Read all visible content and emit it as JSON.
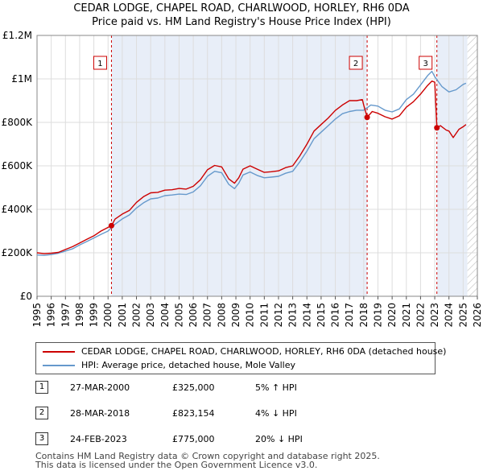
{
  "title_line1": "CEDAR LODGE, CHAPEL ROAD, CHARLWOOD, HORLEY, RH6 0DA",
  "title_line2": "Price paid vs. HM Land Registry's House Price Index (HPI)",
  "colors": {
    "property": "#cc0000",
    "hpi": "#6699cc",
    "shade": "#e8eef8",
    "grid": "#dddddd"
  },
  "chart_data": {
    "type": "line",
    "xlim": [
      1995,
      2026
    ],
    "ylim": [
      0,
      1200000
    ],
    "yticks": [
      {
        "value": 0,
        "label": "£0"
      },
      {
        "value": 200000,
        "label": "£200K"
      },
      {
        "value": 400000,
        "label": "£400K"
      },
      {
        "value": 600000,
        "label": "£600K"
      },
      {
        "value": 800000,
        "label": "£800K"
      },
      {
        "value": 1000000,
        "label": "£1M"
      },
      {
        "value": 1200000,
        "label": "£1.2M"
      }
    ],
    "xticks": [
      "1995",
      "1996",
      "1997",
      "1998",
      "1999",
      "2000",
      "2001",
      "2002",
      "2003",
      "2004",
      "2005",
      "2006",
      "2007",
      "2008",
      "2009",
      "2010",
      "2011",
      "2012",
      "2013",
      "2014",
      "2015",
      "2016",
      "2017",
      "2018",
      "2019",
      "2020",
      "2021",
      "2022",
      "2023",
      "2024",
      "2025",
      "2026"
    ],
    "series": [
      {
        "name": "CEDAR LODGE, CHAPEL ROAD, CHARLWOOD, HORLEY, RH6 0DA (detached house)",
        "color": "#cc0000",
        "x": [
          1995.0,
          1995.5,
          1996.0,
          1996.5,
          1997.0,
          1997.5,
          1998.0,
          1998.5,
          1999.0,
          1999.5,
          2000.24,
          2000.5,
          2001.0,
          2001.5,
          2002.0,
          2002.5,
          2003.0,
          2003.5,
          2004.0,
          2004.5,
          2005.0,
          2005.5,
          2006.0,
          2006.5,
          2007.0,
          2007.5,
          2008.0,
          2008.5,
          2008.9,
          2009.2,
          2009.5,
          2010.0,
          2010.5,
          2011.0,
          2011.5,
          2012.0,
          2012.5,
          2013.0,
          2013.5,
          2014.0,
          2014.5,
          2015.0,
          2015.5,
          2016.0,
          2016.5,
          2017.0,
          2017.5,
          2017.9,
          2018.0,
          2018.24,
          2018.6,
          2019.0,
          2019.5,
          2020.0,
          2020.5,
          2021.0,
          2021.5,
          2022.0,
          2022.5,
          2022.8,
          2023.0,
          2023.15,
          2023.4,
          2023.8,
          2024.0,
          2024.3,
          2024.7,
          2025.0,
          2025.2
        ],
        "values": [
          200000,
          196000,
          198000,
          202000,
          215000,
          228000,
          245000,
          262000,
          278000,
          300000,
          325000,
          355000,
          378000,
          395000,
          432000,
          458000,
          476000,
          478000,
          488000,
          490000,
          496000,
          493000,
          506000,
          536000,
          582000,
          602000,
          595000,
          540000,
          520000,
          545000,
          585000,
          600000,
          585000,
          570000,
          573000,
          577000,
          592000,
          600000,
          646000,
          700000,
          760000,
          790000,
          820000,
          855000,
          880000,
          900000,
          900000,
          905000,
          880000,
          823154,
          850000,
          842000,
          826000,
          815000,
          830000,
          870000,
          895000,
          930000,
          970000,
          990000,
          985000,
          775000,
          785000,
          765000,
          760000,
          730000,
          768000,
          780000,
          790000
        ]
      },
      {
        "name": "HPI: Average price, detached house, Mole Valley",
        "color": "#6699cc",
        "x": [
          1995.0,
          1995.5,
          1996.0,
          1996.5,
          1997.0,
          1997.5,
          1998.0,
          1998.5,
          1999.0,
          1999.5,
          2000.0,
          2000.5,
          2001.0,
          2001.5,
          2002.0,
          2002.5,
          2003.0,
          2003.5,
          2004.0,
          2004.5,
          2005.0,
          2005.5,
          2006.0,
          2006.5,
          2007.0,
          2007.5,
          2008.0,
          2008.5,
          2008.9,
          2009.2,
          2009.5,
          2010.0,
          2010.5,
          2011.0,
          2011.5,
          2012.0,
          2012.5,
          2013.0,
          2013.5,
          2014.0,
          2014.5,
          2015.0,
          2015.5,
          2016.0,
          2016.5,
          2017.0,
          2017.5,
          2018.0,
          2018.5,
          2019.0,
          2019.5,
          2020.0,
          2020.5,
          2021.0,
          2021.5,
          2022.0,
          2022.5,
          2022.8,
          2023.0,
          2023.5,
          2024.0,
          2024.5,
          2025.0,
          2025.2
        ],
        "values": [
          190000,
          188000,
          192000,
          198000,
          208000,
          218000,
          236000,
          252000,
          268000,
          285000,
          300000,
          332000,
          356000,
          374000,
          406000,
          430000,
          448000,
          452000,
          463000,
          466000,
          470000,
          468000,
          480000,
          508000,
          552000,
          575000,
          568000,
          515000,
          495000,
          520000,
          558000,
          572000,
          556000,
          545000,
          548000,
          552000,
          566000,
          575000,
          618000,
          668000,
          725000,
          755000,
          785000,
          815000,
          840000,
          850000,
          856000,
          856000,
          880000,
          875000,
          856000,
          848000,
          862000,
          905000,
          930000,
          972000,
          1015000,
          1035000,
          1010000,
          965000,
          940000,
          950000,
          975000,
          980000
        ]
      }
    ],
    "sales": [
      {
        "label": "1",
        "x": 2000.24,
        "value": 325000
      },
      {
        "label": "2",
        "x": 2018.24,
        "value": 823154
      },
      {
        "label": "3",
        "x": 2023.15,
        "value": 775000
      }
    ],
    "shaded_ranges": [
      [
        2000.24,
        2018.24
      ],
      [
        2023.15,
        2025.3
      ]
    ],
    "hatch_range": [
      2025.3,
      2026
    ]
  },
  "legend": {
    "property_label": "CEDAR LODGE, CHAPEL ROAD, CHARLWOOD, HORLEY, RH6 0DA (detached house)",
    "hpi_label": "HPI: Average price, detached house, Mole Valley"
  },
  "sales_table": [
    {
      "num": "1",
      "date": "27-MAR-2000",
      "price": "£325,000",
      "hpi": "5% ↑ HPI"
    },
    {
      "num": "2",
      "date": "28-MAR-2018",
      "price": "£823,154",
      "hpi": "4% ↓ HPI"
    },
    {
      "num": "3",
      "date": "24-FEB-2023",
      "price": "£775,000",
      "hpi": "20% ↓ HPI"
    }
  ],
  "footer_line1": "Contains HM Land Registry data © Crown copyright and database right 2025.",
  "footer_line2": "This data is licensed under the Open Government Licence v3.0."
}
